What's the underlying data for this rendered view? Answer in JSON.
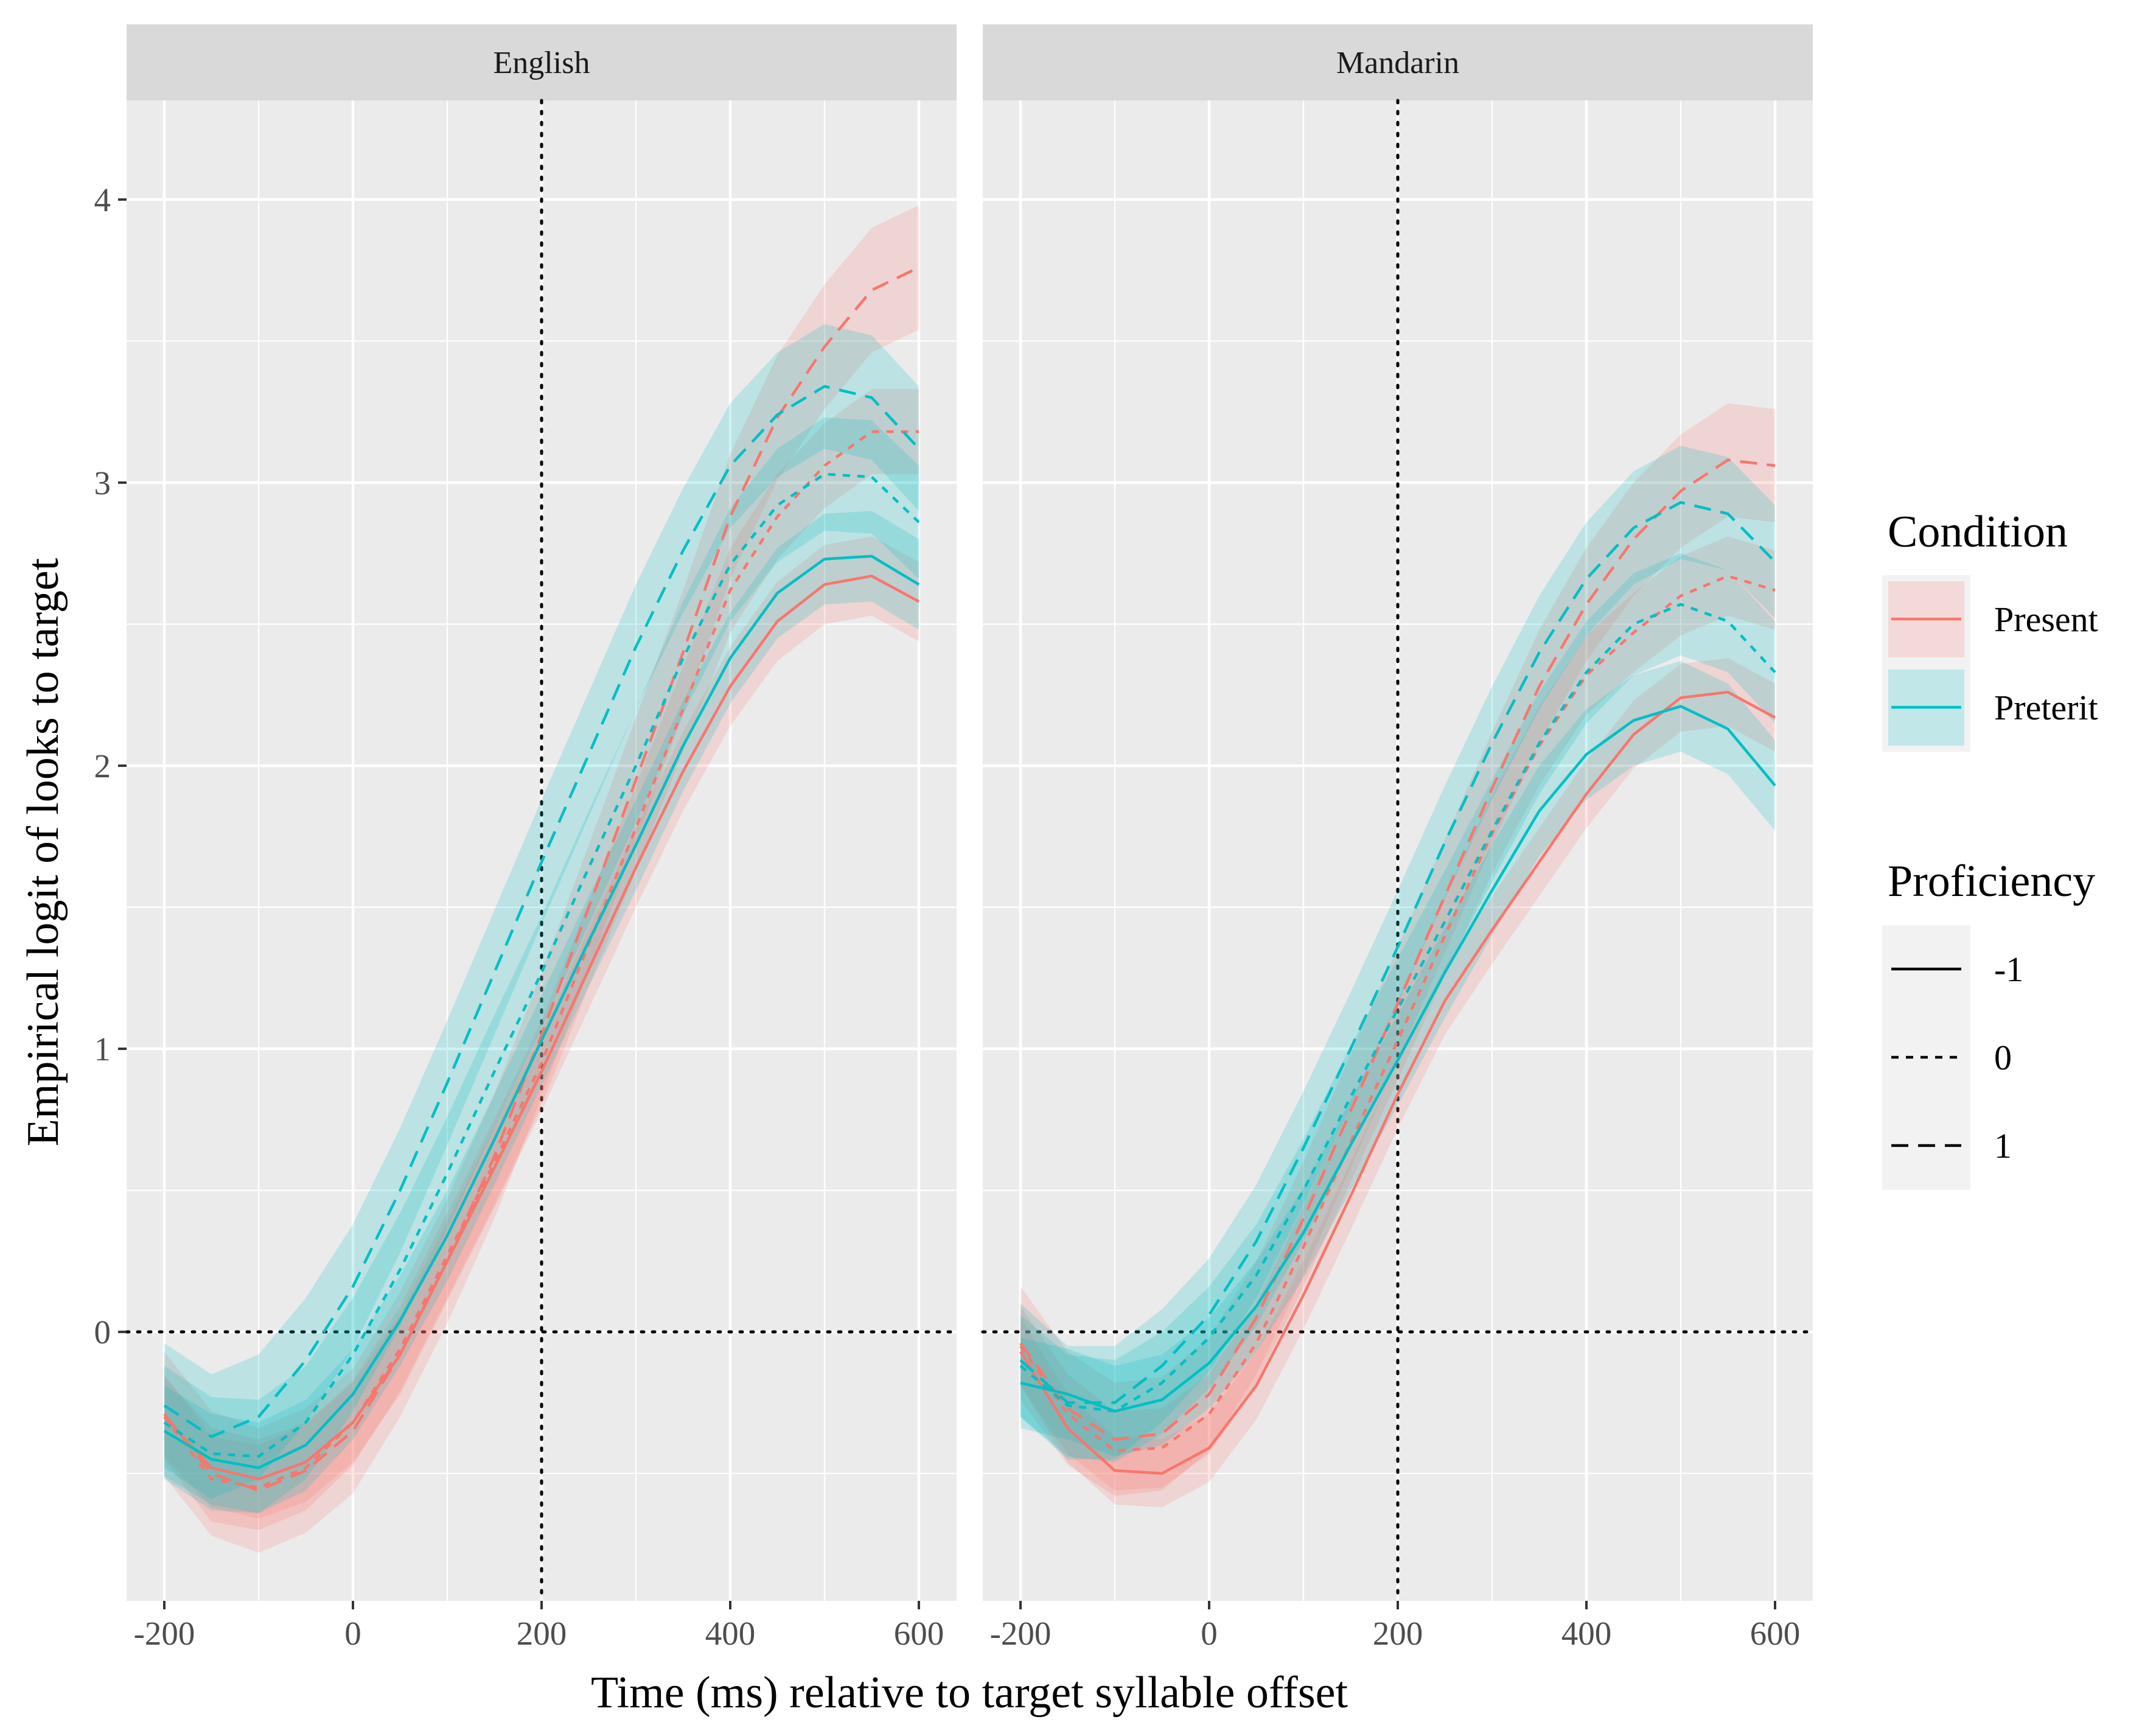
{
  "chart_data": {
    "type": "line",
    "title": "",
    "xlabel": "Time (ms) relative to target syllable offset",
    "ylabel": "Empirical logit of looks to target",
    "xlim": [
      -240,
      640
    ],
    "ylim": [
      -0.95,
      4.35
    ],
    "x_ticks": [
      -200,
      0,
      200,
      400,
      600
    ],
    "x_tick_labels": [
      "-200",
      "0",
      "200",
      "400",
      "600"
    ],
    "y_ticks": [
      0,
      1,
      2,
      3,
      4
    ],
    "y_tick_labels": [
      "0",
      "1",
      "2",
      "3",
      "4"
    ],
    "reference_lines": {
      "vertical_x": 200,
      "horizontal_y": 0,
      "style": "dotted"
    },
    "grid": true,
    "x": [
      -200,
      -150,
      -100,
      -50,
      0,
      50,
      100,
      150,
      200,
      250,
      300,
      350,
      400,
      450,
      500,
      550,
      600
    ],
    "colors": {
      "Present": "#F8766D",
      "Preterit": "#00BFC4"
    },
    "legend": {
      "placement": "right",
      "condition_title": "Condition",
      "condition_items": [
        "Present",
        "Preterit"
      ],
      "proficiency_title": "Proficiency",
      "proficiency_items": [
        "-1",
        "0",
        "1"
      ]
    },
    "panels": [
      {
        "label": "English",
        "series": [
          {
            "condition": "Present",
            "proficiency": "-1",
            "values": [
              -0.3,
              -0.48,
              -0.52,
              -0.46,
              -0.32,
              -0.08,
              0.25,
              0.58,
              0.92,
              1.28,
              1.64,
              1.98,
              2.28,
              2.51,
              2.64,
              2.67,
              2.58
            ],
            "band": 0.14
          },
          {
            "condition": "Present",
            "proficiency": "0",
            "values": [
              -0.3,
              -0.52,
              -0.55,
              -0.48,
              -0.32,
              -0.06,
              0.27,
              0.6,
              0.95,
              1.37,
              1.78,
              2.2,
              2.62,
              2.88,
              3.06,
              3.18,
              3.18
            ],
            "band": 0.15
          },
          {
            "condition": "Present",
            "proficiency": "1",
            "values": [
              -0.29,
              -0.5,
              -0.56,
              -0.49,
              -0.35,
              -0.08,
              0.25,
              0.62,
              1.05,
              1.5,
              1.95,
              2.4,
              2.88,
              3.23,
              3.48,
              3.68,
              3.76
            ],
            "band": 0.22
          },
          {
            "condition": "Preterit",
            "proficiency": "-1",
            "values": [
              -0.35,
              -0.45,
              -0.48,
              -0.4,
              -0.22,
              0.04,
              0.34,
              0.68,
              1.03,
              1.38,
              1.72,
              2.07,
              2.38,
              2.61,
              2.73,
              2.74,
              2.64
            ],
            "band": 0.16
          },
          {
            "condition": "Preterit",
            "proficiency": "0",
            "values": [
              -0.32,
              -0.43,
              -0.44,
              -0.32,
              -0.08,
              0.22,
              0.56,
              0.92,
              1.27,
              1.64,
              2.0,
              2.38,
              2.71,
              2.92,
              3.03,
              3.02,
              2.86
            ],
            "band": 0.2
          },
          {
            "condition": "Preterit",
            "proficiency": "1",
            "values": [
              -0.26,
              -0.37,
              -0.3,
              -0.1,
              0.16,
              0.5,
              0.88,
              1.27,
              1.66,
              2.04,
              2.42,
              2.76,
              3.06,
              3.24,
              3.34,
              3.3,
              3.12
            ],
            "band": 0.22
          }
        ]
      },
      {
        "label": "Mandarin",
        "series": [
          {
            "condition": "Present",
            "proficiency": "-1",
            "values": [
              -0.07,
              -0.34,
              -0.49,
              -0.5,
              -0.41,
              -0.19,
              0.13,
              0.48,
              0.84,
              1.17,
              1.42,
              1.66,
              1.9,
              2.11,
              2.24,
              2.26,
              2.17
            ],
            "band": 0.12
          },
          {
            "condition": "Present",
            "proficiency": "0",
            "values": [
              -0.05,
              -0.29,
              -0.42,
              -0.41,
              -0.29,
              -0.04,
              0.3,
              0.67,
              1.03,
              1.4,
              1.76,
              2.07,
              2.32,
              2.47,
              2.6,
              2.67,
              2.62
            ],
            "band": 0.14
          },
          {
            "condition": "Present",
            "proficiency": "1",
            "values": [
              -0.04,
              -0.27,
              -0.38,
              -0.36,
              -0.22,
              0.05,
              0.4,
              0.78,
              1.16,
              1.54,
              1.92,
              2.28,
              2.57,
              2.8,
              2.97,
              3.08,
              3.06
            ],
            "band": 0.2
          },
          {
            "condition": "Preterit",
            "proficiency": "-1",
            "values": [
              -0.18,
              -0.22,
              -0.28,
              -0.24,
              -0.11,
              0.09,
              0.35,
              0.66,
              0.96,
              1.27,
              1.56,
              1.84,
              2.04,
              2.16,
              2.21,
              2.13,
              1.93
            ],
            "band": 0.16
          },
          {
            "condition": "Preterit",
            "proficiency": "0",
            "values": [
              -0.12,
              -0.26,
              -0.28,
              -0.18,
              -0.02,
              0.2,
              0.5,
              0.83,
              1.14,
              1.45,
              1.77,
              2.08,
              2.33,
              2.5,
              2.57,
              2.51,
              2.33
            ],
            "band": 0.18
          },
          {
            "condition": "Preterit",
            "proficiency": "1",
            "values": [
              -0.1,
              -0.25,
              -0.25,
              -0.12,
              0.06,
              0.32,
              0.65,
              1.0,
              1.36,
              1.73,
              2.08,
              2.4,
              2.66,
              2.84,
              2.93,
              2.89,
              2.72
            ],
            "band": 0.2
          }
        ]
      }
    ]
  }
}
